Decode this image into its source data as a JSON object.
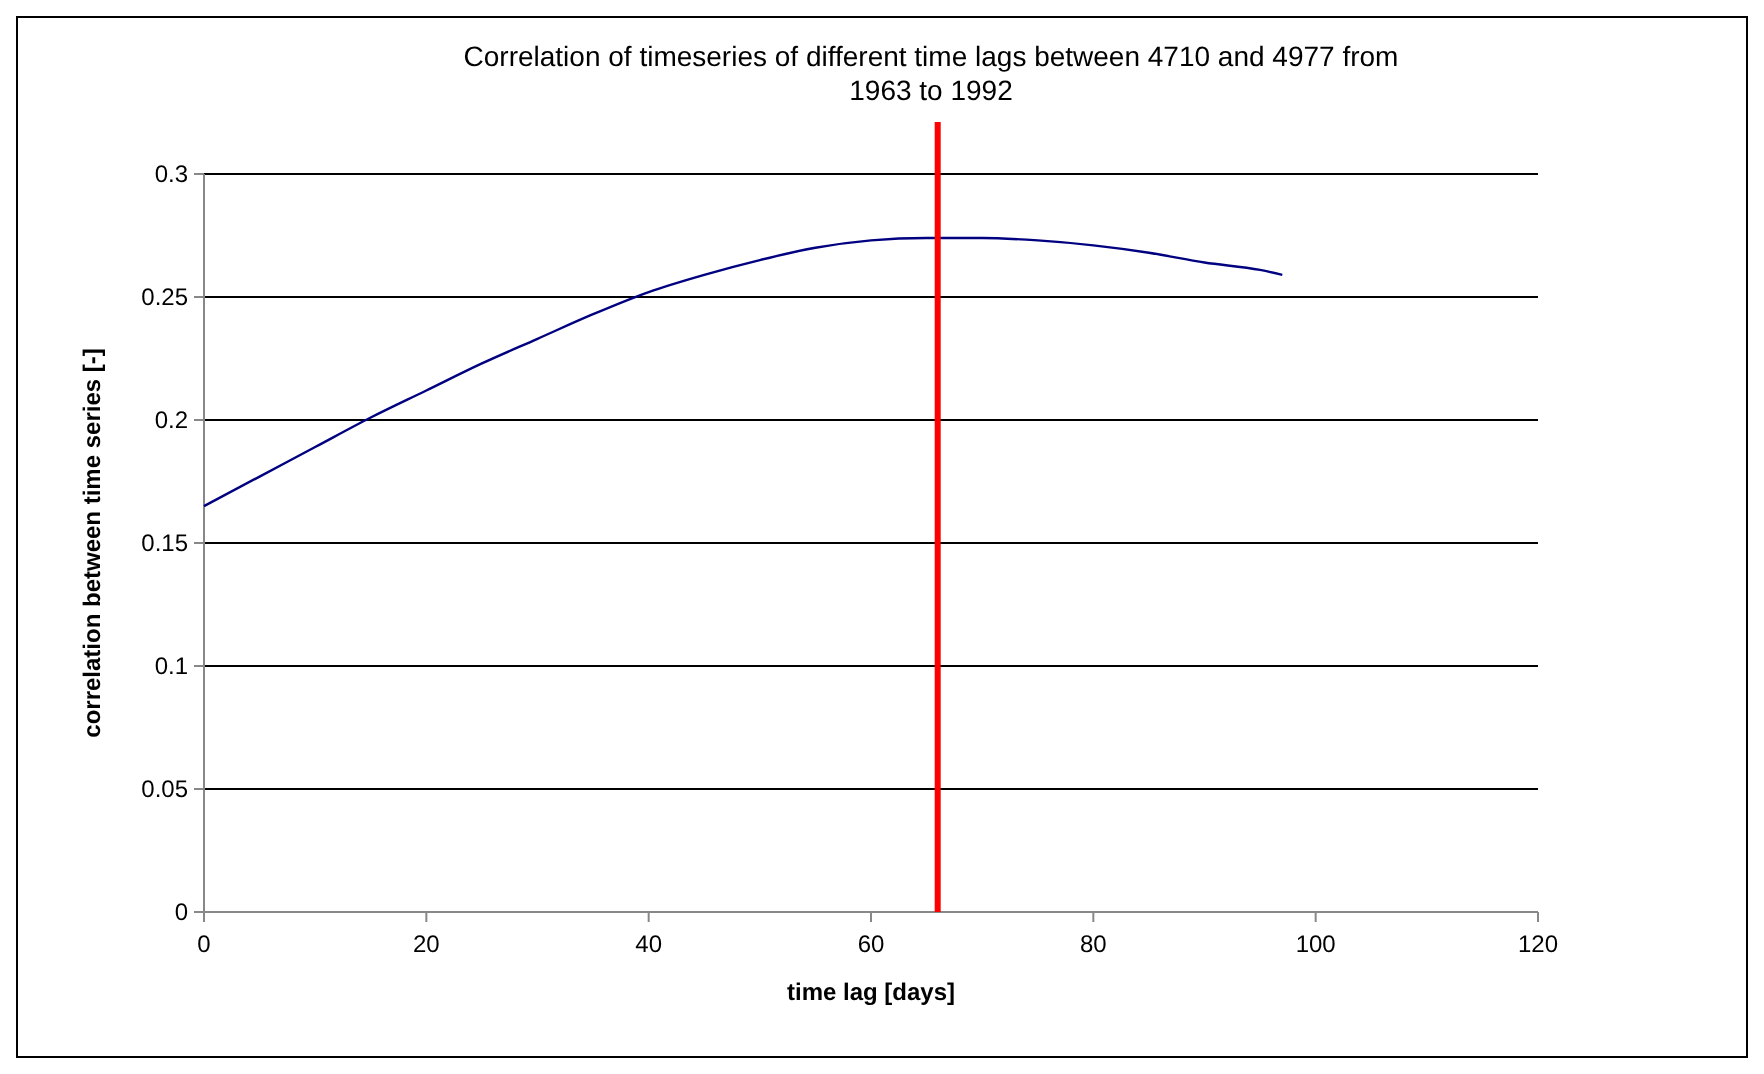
{
  "chart_data": {
    "type": "line",
    "title": "Correlation of timeseries of different time lags between 4710 and 4977 from 1963 to 1992",
    "xlabel": "time lag [days]",
    "ylabel": "correlation between time series [-]",
    "x": [
      0,
      5,
      10,
      15,
      20,
      25,
      30,
      35,
      40,
      45,
      50,
      55,
      60,
      65,
      70,
      75,
      80,
      85,
      90,
      95,
      97
    ],
    "series": [
      {
        "color": "#000080",
        "values": [
          0.165,
          0.177,
          0.189,
          0.201,
          0.212,
          0.223,
          0.233,
          0.243,
          0.252,
          0.259,
          0.265,
          0.27,
          0.273,
          0.274,
          0.274,
          0.273,
          0.271,
          0.268,
          0.264,
          0.261,
          0.259
        ]
      }
    ],
    "xlim": [
      0,
      120
    ],
    "xticks": [
      0,
      20,
      40,
      60,
      80,
      100,
      120
    ],
    "ylim": [
      0,
      0.3
    ],
    "yticks": [
      0,
      0.05,
      0.1,
      0.15,
      0.2,
      0.25,
      0.3
    ],
    "grid": "y",
    "ref_lines": [
      {
        "axis": "x",
        "value": 66,
        "color": "#ff0000"
      }
    ]
  }
}
